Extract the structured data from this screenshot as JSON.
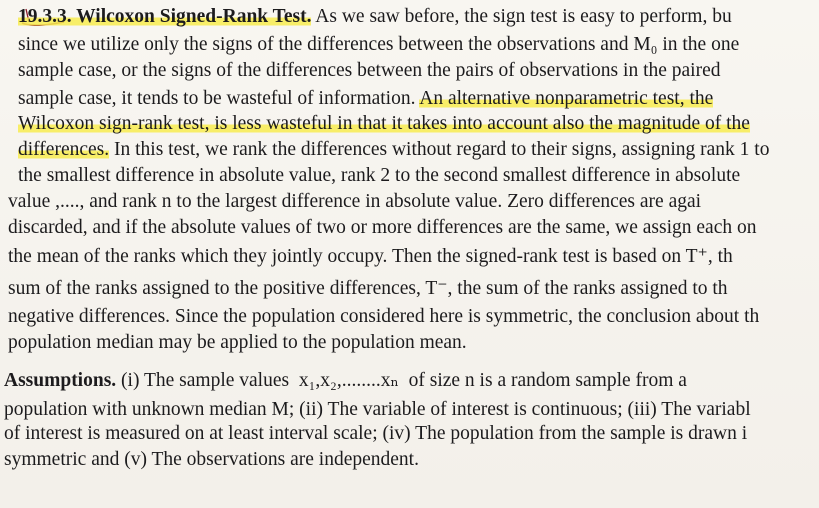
{
  "lines": [
    {
      "segments": [
        {
          "t": "19.3.3. Wilcoxon Signed-Rank Test.",
          "b": true,
          "h": true
        },
        {
          "t": " As we saw before, the sign test is easy to perform, bu"
        }
      ]
    },
    {
      "segments": [
        {
          "t": "since we utilize only the signs of the differences between the observations and M₀ in the one"
        }
      ]
    },
    {
      "segments": [
        {
          "t": "sample case, or the signs of the differences between the pairs of observations in the paired"
        }
      ]
    },
    {
      "segments": [
        {
          "t": "sample case, it tends to be wasteful of information. "
        },
        {
          "t": "An alternative nonparametric test, the",
          "h": true
        }
      ]
    },
    {
      "segments": [
        {
          "t": "Wilcoxon sign-rank test, is less wasteful in that it takes into account also the magnitude of the",
          "h": true
        }
      ]
    },
    {
      "segments": [
        {
          "t": "differences.",
          "h": true
        },
        {
          "t": " In this test, we rank the differences without regard to their signs, assigning rank 1 to"
        }
      ]
    },
    {
      "segments": [
        {
          "t": "the smallest difference in absolute value, rank 2 to the second smallest difference in absolute"
        }
      ]
    },
    {
      "segments": [
        {
          "t": "value ,...., and rank n to the largest difference in absolute value. Zero differences are agai"
        }
      ]
    },
    {
      "segments": [
        {
          "t": "discarded, and if the absolute values of two or more differences are the same, we assign each on"
        }
      ]
    },
    {
      "segments": [
        {
          "t": "the mean of the ranks which they jointly occupy. Then the signed-rank test is based on T⁺, th"
        }
      ]
    },
    {
      "segments": [
        {
          "t": "sum of the ranks assigned to the positive differences, T⁻, the sum of the ranks assigned to th"
        }
      ]
    },
    {
      "segments": [
        {
          "t": "negative differences. Since the population considered here is symmetric, the conclusion about th"
        }
      ]
    },
    {
      "segments": [
        {
          "t": "population median may be applied to the population mean."
        }
      ]
    },
    {
      "segments": [
        {
          "t": "Assumptions.",
          "b": true
        },
        {
          "t": " (i) The sample values  x₁,x₂,........xₙ  of size n is a random sample from a"
        }
      ]
    },
    {
      "segments": [
        {
          "t": "population with unknown median M; (ii) The variable of interest is continuous; (iii) The variabl"
        }
      ]
    },
    {
      "segments": [
        {
          "t": "of interest is measured on at least interval scale; (iv) The population from the sample is drawn i"
        }
      ]
    },
    {
      "segments": [
        {
          "t": "symmetric and (v) The observations are independent."
        }
      ]
    }
  ],
  "colors": {
    "highlight": "#f8ec50",
    "pen": "#8b1c2c",
    "ink": "#1c1b1d",
    "paper": "#f6f3ee"
  }
}
